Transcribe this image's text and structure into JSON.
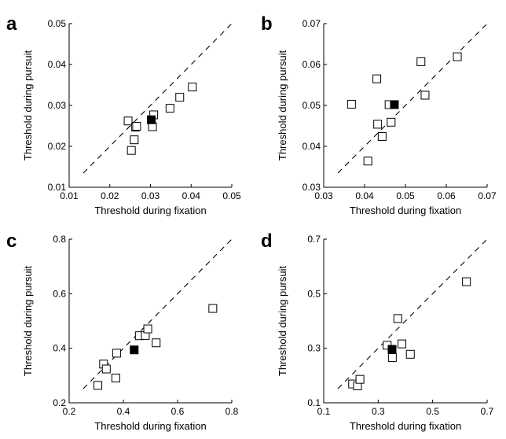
{
  "chart_data": [
    {
      "type": "scatter",
      "panel": "a",
      "xlabel": "Threshold during fixation",
      "ylabel": "Threshold during pursuit",
      "xlim": [
        0.01,
        0.05
      ],
      "ylim": [
        0.01,
        0.05
      ],
      "x_ticks": [
        "0.01",
        "0.02",
        "0.03",
        "0.04",
        "0.05"
      ],
      "y_ticks": [
        "0.01",
        "0.02",
        "0.03",
        "0.04",
        "0.05"
      ],
      "reference_line": "dashed unity line",
      "points": [
        {
          "x": 0.0245,
          "y": 0.0262
        },
        {
          "x": 0.0253,
          "y": 0.019
        },
        {
          "x": 0.026,
          "y": 0.0216
        },
        {
          "x": 0.0263,
          "y": 0.0247
        },
        {
          "x": 0.0266,
          "y": 0.0249
        },
        {
          "x": 0.0305,
          "y": 0.0248
        },
        {
          "x": 0.0308,
          "y": 0.0277
        },
        {
          "x": 0.0348,
          "y": 0.0293
        },
        {
          "x": 0.0372,
          "y": 0.032
        },
        {
          "x": 0.0403,
          "y": 0.0345
        }
      ],
      "mean_point": {
        "x": 0.0302,
        "y": 0.0265
      },
      "marker": "open-square",
      "mean_marker": "filled-square"
    },
    {
      "type": "scatter",
      "panel": "b",
      "xlabel": "Threshold during fixation",
      "ylabel": "Threshold during pursuit",
      "xlim": [
        0.03,
        0.07
      ],
      "ylim": [
        0.03,
        0.07
      ],
      "x_ticks": [
        "0.03",
        "0.04",
        "0.05",
        "0.06",
        "0.07"
      ],
      "y_ticks": [
        "0.03",
        "0.04",
        "0.05",
        "0.06",
        "0.07"
      ],
      "reference_line": "dashed unity line",
      "points": [
        {
          "x": 0.0368,
          "y": 0.0503
        },
        {
          "x": 0.0408,
          "y": 0.0364
        },
        {
          "x": 0.043,
          "y": 0.0565
        },
        {
          "x": 0.0432,
          "y": 0.0454
        },
        {
          "x": 0.0443,
          "y": 0.0424
        },
        {
          "x": 0.046,
          "y": 0.0502
        },
        {
          "x": 0.0465,
          "y": 0.0459
        },
        {
          "x": 0.0538,
          "y": 0.0607
        },
        {
          "x": 0.0548,
          "y": 0.0525
        },
        {
          "x": 0.0627,
          "y": 0.0619
        }
      ],
      "mean_point": {
        "x": 0.0473,
        "y": 0.0502
      },
      "marker": "open-square",
      "mean_marker": "filled-square"
    },
    {
      "type": "scatter",
      "panel": "c",
      "xlabel": "Threshold during fixation",
      "ylabel": "Threshold during pursuit",
      "xlim": [
        0.2,
        0.8
      ],
      "ylim": [
        0.2,
        0.8
      ],
      "x_ticks": [
        "0.2",
        "0.4",
        "0.6",
        "0.8"
      ],
      "y_ticks": [
        "0.2",
        "0.4",
        "0.6",
        "0.8"
      ],
      "reference_line": "dashed unity line",
      "points": [
        {
          "x": 0.306,
          "y": 0.264
        },
        {
          "x": 0.327,
          "y": 0.342
        },
        {
          "x": 0.337,
          "y": 0.324
        },
        {
          "x": 0.372,
          "y": 0.291
        },
        {
          "x": 0.375,
          "y": 0.382
        },
        {
          "x": 0.459,
          "y": 0.446
        },
        {
          "x": 0.481,
          "y": 0.447
        },
        {
          "x": 0.49,
          "y": 0.471
        },
        {
          "x": 0.521,
          "y": 0.42
        },
        {
          "x": 0.73,
          "y": 0.546
        }
      ],
      "mean_point": {
        "x": 0.44,
        "y": 0.394
      },
      "marker": "open-square",
      "mean_marker": "filled-square"
    },
    {
      "type": "scatter",
      "panel": "d",
      "xlabel": "Threshold during fixation",
      "ylabel": "Threshold during pursuit",
      "xlim": [
        0.1,
        0.7
      ],
      "ylim": [
        0.1,
        0.7
      ],
      "x_ticks": [
        "0.1",
        "0.3",
        "0.5",
        "0.7"
      ],
      "y_ticks": [
        "0.1",
        "0.3",
        "0.5",
        "0.7"
      ],
      "reference_line": "dashed unity line",
      "points": [
        {
          "x": 0.206,
          "y": 0.169
        },
        {
          "x": 0.224,
          "y": 0.162
        },
        {
          "x": 0.233,
          "y": 0.186
        },
        {
          "x": 0.333,
          "y": 0.311
        },
        {
          "x": 0.352,
          "y": 0.266
        },
        {
          "x": 0.372,
          "y": 0.409
        },
        {
          "x": 0.387,
          "y": 0.316
        },
        {
          "x": 0.418,
          "y": 0.278
        },
        {
          "x": 0.624,
          "y": 0.544
        }
      ],
      "mean_point": {
        "x": 0.351,
        "y": 0.296
      },
      "marker": "open-square",
      "mean_marker": "filled-square"
    }
  ]
}
